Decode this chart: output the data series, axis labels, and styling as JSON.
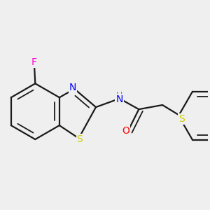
{
  "background_color": "#efefef",
  "bond_color": "#1a1a1a",
  "bond_width": 1.6,
  "atom_colors": {
    "F": "#ff00cc",
    "N": "#0000ff",
    "S": "#cccc00",
    "O": "#ff0000",
    "H": "#6b8e8e",
    "C": "#1a1a1a"
  },
  "font_size": 10,
  "figsize": [
    3.0,
    3.0
  ],
  "dpi": 100
}
